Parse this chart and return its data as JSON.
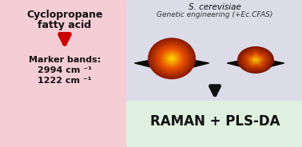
{
  "left_box_color": "#f5cdd5",
  "right_top_box_color": "#dcdce8",
  "right_bottom_box_color": "#dff0df",
  "title_top": "S. cerevisiae",
  "title_sub": "Genetic engineering (+Ec.CFAS)",
  "left_title_line1": "Cyclopropane",
  "left_title_line2": "fatty acid",
  "marker_label": "Marker bands:",
  "marker_band1": "2994 cm ⁻¹",
  "marker_band2": "1222 cm ⁻¹",
  "bottom_text": "RAMAN + PLS-DA",
  "arrow_color_red": "#cc0000",
  "arrow_color_black": "#111111",
  "bg_color": "#ffffff",
  "fig_w": 3.78,
  "fig_h": 1.84,
  "dpi": 100
}
